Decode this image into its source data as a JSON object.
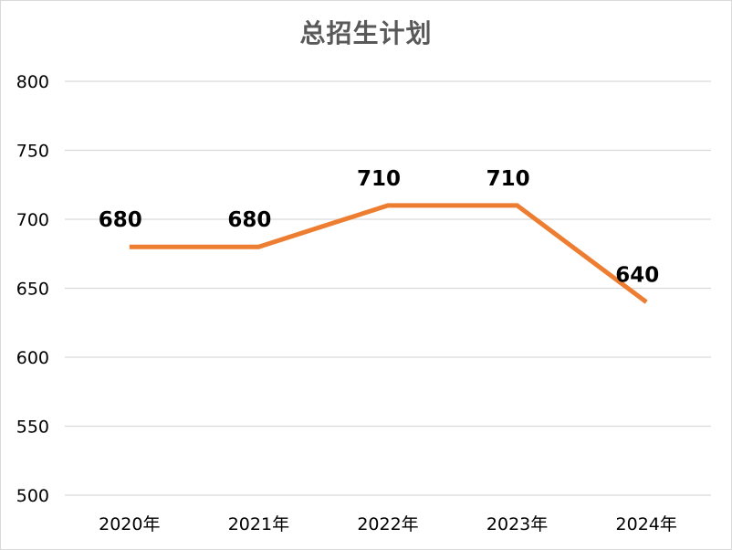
{
  "chart_data": {
    "type": "line",
    "title": "总招生计划",
    "categories": [
      "2020年",
      "2021年",
      "2022年",
      "2023年",
      "2024年"
    ],
    "series": [
      {
        "values": [
          680,
          680,
          710,
          710,
          640
        ],
        "color": "#ED7D31"
      }
    ],
    "data_labels": [
      "680",
      "680",
      "710",
      "710",
      "640"
    ],
    "ylim": [
      500,
      800
    ],
    "y_ticks": [
      500,
      550,
      600,
      650,
      700,
      750,
      800
    ],
    "y_tick_labels": [
      "500",
      "550",
      "600",
      "650",
      "700",
      "750",
      "800"
    ],
    "xlabel": "",
    "ylabel": "",
    "grid": true,
    "legend": "none",
    "gridline_color": "#d9d9d9"
  }
}
